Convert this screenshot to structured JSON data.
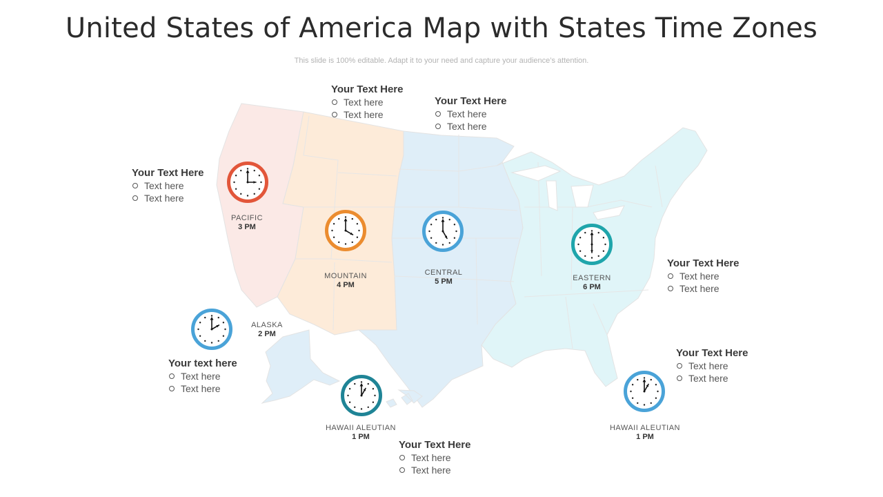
{
  "title": "United States of America Map with States Time Zones",
  "subtitle": "This slide is 100% editable. Adapt it to your need and capture your audience’s attention.",
  "colors": {
    "pacific_region": "#fbe9e6",
    "mountain_region": "#fdebd9",
    "central_region": "#dfeef8",
    "eastern_region": "#e0f5f8",
    "border": "#e3e3e3"
  },
  "callouts": [
    {
      "heading": "Your Text Here",
      "items": [
        "Text here",
        "Text here"
      ]
    },
    {
      "heading": "Your Text Here",
      "items": [
        "Text here",
        "Text here"
      ]
    },
    {
      "heading": "Your Text Here",
      "items": [
        "Text here",
        "Text here"
      ]
    },
    {
      "heading": "Your Text Here",
      "items": [
        "Text here",
        "Text here"
      ]
    },
    {
      "heading": "Your Text Here",
      "items": [
        "Text here",
        "Text here"
      ]
    },
    {
      "heading": "Your text here",
      "items": [
        "Text here",
        "Text here"
      ]
    },
    {
      "heading": "Your Text Here",
      "items": [
        "Text here",
        "Text here"
      ]
    }
  ],
  "zones": [
    {
      "name": "PACIFIC",
      "time": "3 PM",
      "ring_color": "#e2563a",
      "hour": 3
    },
    {
      "name": "MOUNTAIN",
      "time": "4 PM",
      "ring_color": "#eb8c2f",
      "hour": 4
    },
    {
      "name": "CENTRAL",
      "time": "5 PM",
      "ring_color": "#4aa3d8",
      "hour": 5
    },
    {
      "name": "EASTERN",
      "time": "6 PM",
      "ring_color": "#1fa5ab",
      "hour": 6
    },
    {
      "name": "ALASKA",
      "time": "2 PM",
      "ring_color": "#4aa3d8",
      "hour": 2
    },
    {
      "name": "HAWAII ALEUTIAN",
      "time": "1 PM",
      "ring_color": "#1f8496",
      "hour": 1
    },
    {
      "name": "HAWAII ALEUTIAN",
      "time": "1 PM",
      "ring_color": "#4aa3d8",
      "hour": 1
    }
  ]
}
